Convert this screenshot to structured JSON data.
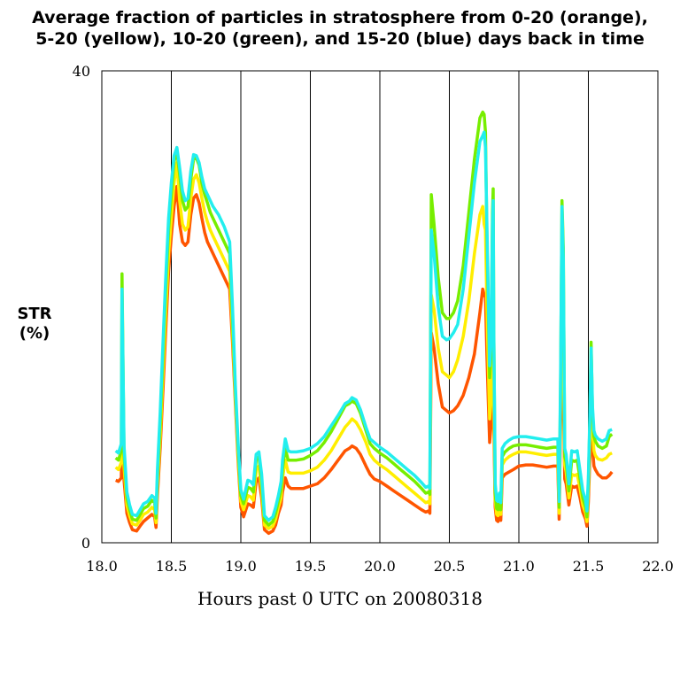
{
  "chart_data": {
    "type": "line",
    "title_line1": "Average fraction of particles in stratosphere from 0-20 (orange),",
    "title_line2": "5-20 (yellow), 10-20 (green), and 15-20 (blue) days back in time",
    "ylabel_line1": "STR",
    "ylabel_line2": "(%)",
    "xlabel": "Hours past 0 UTC on 20080318",
    "xlim": [
      18.0,
      22.0
    ],
    "ylim": [
      0,
      40
    ],
    "xticks": [
      "18.0",
      "18.5",
      "19.0",
      "19.5",
      "20.0",
      "20.5",
      "21.0",
      "21.5",
      "22.0"
    ],
    "xtick_values": [
      18.0,
      18.5,
      19.0,
      19.5,
      20.0,
      20.5,
      21.0,
      21.5,
      22.0
    ],
    "yticks": [
      "0",
      "40"
    ],
    "ytick_values": [
      0,
      40
    ],
    "vertical_grid_lines": [
      18.5,
      19.0,
      19.5,
      20.0,
      20.5,
      21.0,
      21.5
    ],
    "x": [
      18.1,
      18.12,
      18.14,
      18.145,
      18.16,
      18.18,
      18.2,
      18.22,
      18.25,
      18.28,
      18.3,
      18.33,
      18.36,
      18.38,
      18.39,
      18.4,
      18.42,
      18.44,
      18.46,
      18.48,
      18.5,
      18.52,
      18.54,
      18.56,
      18.58,
      18.6,
      18.62,
      18.64,
      18.66,
      18.68,
      18.7,
      18.72,
      18.74,
      18.76,
      18.78,
      18.8,
      18.84,
      18.88,
      18.92,
      18.94,
      18.96,
      18.98,
      19.0,
      19.02,
      19.05,
      19.07,
      19.09,
      19.11,
      19.13,
      19.15,
      19.17,
      19.2,
      19.23,
      19.25,
      19.27,
      19.29,
      19.3,
      19.32,
      19.34,
      19.36,
      19.4,
      19.45,
      19.5,
      19.55,
      19.6,
      19.65,
      19.7,
      19.75,
      19.78,
      19.8,
      19.83,
      19.86,
      19.9,
      19.93,
      19.96,
      20.0,
      20.05,
      20.1,
      20.15,
      20.2,
      20.25,
      20.3,
      20.33,
      20.35,
      20.36,
      20.37,
      20.39,
      20.42,
      20.45,
      20.48,
      20.5,
      20.53,
      20.56,
      20.6,
      20.64,
      20.68,
      20.72,
      20.74,
      20.75,
      20.76,
      20.77,
      20.78,
      20.79,
      20.8,
      20.81,
      20.815,
      20.82,
      20.83,
      20.84,
      20.85,
      20.86,
      20.87,
      20.88,
      20.9,
      20.93,
      20.96,
      21.0,
      21.05,
      21.1,
      21.15,
      21.2,
      21.25,
      21.28,
      21.29,
      21.3,
      21.31,
      21.32,
      21.33,
      21.34,
      21.36,
      21.38,
      21.4,
      21.42,
      21.44,
      21.46,
      21.48,
      21.49,
      21.5,
      21.51,
      21.52,
      21.53,
      21.54,
      21.55,
      21.57,
      21.6,
      21.63,
      21.65,
      21.67
    ],
    "series": [
      {
        "color": "#ff5500",
        "values": [
          5.3,
          5.2,
          5.5,
          9.5,
          5.3,
          2.5,
          1.7,
          1.1,
          1.0,
          1.5,
          1.8,
          2.1,
          2.4,
          2.2,
          1.3,
          4.0,
          8.0,
          13.0,
          18.0,
          23.0,
          26.0,
          28.5,
          30.2,
          27.0,
          25.5,
          25.2,
          25.5,
          27.8,
          29.2,
          29.5,
          28.8,
          27.5,
          26.3,
          25.5,
          25.0,
          24.5,
          23.5,
          22.5,
          21.5,
          17.0,
          12.0,
          7.0,
          3.0,
          2.2,
          3.3,
          3.2,
          3.0,
          5.2,
          5.5,
          3.8,
          1.1,
          0.8,
          1.0,
          1.5,
          2.5,
          3.2,
          4.3,
          5.5,
          4.8,
          4.6,
          4.6,
          4.6,
          4.8,
          5.0,
          5.5,
          6.2,
          7.0,
          7.8,
          8.0,
          8.2,
          8.0,
          7.5,
          6.5,
          5.8,
          5.4,
          5.2,
          4.8,
          4.4,
          4.0,
          3.6,
          3.2,
          2.8,
          2.6,
          2.7,
          2.5,
          17.8,
          16.5,
          13.5,
          11.5,
          11.2,
          11.0,
          11.2,
          11.6,
          12.5,
          14.0,
          16.0,
          19.5,
          21.5,
          21.0,
          20.8,
          16.0,
          12.0,
          8.5,
          10.0,
          14.5,
          16.0,
          10.0,
          3.0,
          1.9,
          1.8,
          2.4,
          1.9,
          5.5,
          5.8,
          6.0,
          6.2,
          6.5,
          6.6,
          6.6,
          6.5,
          6.4,
          6.5,
          6.5,
          2.0,
          10.0,
          15.5,
          13.0,
          5.4,
          5.0,
          3.2,
          4.8,
          4.7,
          4.8,
          3.8,
          2.6,
          2.0,
          1.4,
          3.5,
          7.0,
          9.0,
          8.0,
          6.5,
          6.2,
          5.8,
          5.5,
          5.5,
          5.7,
          6.0
        ]
      },
      {
        "color": "#ffee00",
        "values": [
          6.4,
          6.2,
          6.8,
          11.5,
          6.5,
          3.2,
          2.3,
          1.6,
          1.5,
          2.0,
          2.4,
          2.6,
          3.0,
          2.8,
          1.7,
          4.8,
          9.0,
          14.5,
          19.5,
          24.5,
          27.5,
          30.5,
          32.2,
          29.0,
          27.0,
          26.5,
          26.8,
          29.2,
          30.8,
          31.2,
          30.5,
          29.2,
          28.0,
          27.2,
          26.5,
          26.0,
          25.0,
          24.0,
          23.0,
          18.0,
          12.5,
          7.5,
          3.5,
          2.8,
          4.0,
          3.9,
          3.6,
          6.2,
          6.5,
          4.5,
          1.5,
          1.2,
          1.4,
          2.0,
          3.0,
          3.8,
          5.5,
          7.0,
          6.0,
          5.9,
          5.9,
          5.9,
          6.1,
          6.4,
          7.0,
          7.8,
          8.8,
          9.8,
          10.2,
          10.5,
          10.2,
          9.6,
          8.5,
          7.5,
          7.0,
          6.6,
          6.2,
          5.7,
          5.2,
          4.7,
          4.2,
          3.7,
          3.4,
          3.5,
          3.3,
          21.0,
          19.8,
          16.5,
          14.5,
          14.2,
          14.0,
          14.5,
          15.5,
          17.5,
          20.5,
          24.5,
          27.8,
          28.5,
          27.0,
          26.5,
          20.0,
          15.0,
          10.5,
          12.0,
          18.0,
          19.5,
          12.0,
          3.6,
          2.4,
          2.3,
          3.0,
          2.4,
          6.6,
          7.0,
          7.3,
          7.5,
          7.7,
          7.7,
          7.6,
          7.5,
          7.4,
          7.5,
          7.5,
          2.5,
          12.0,
          19.0,
          16.0,
          6.6,
          6.0,
          3.8,
          5.8,
          5.7,
          5.8,
          4.6,
          3.2,
          2.5,
          1.8,
          4.5,
          8.5,
          11.0,
          9.5,
          7.8,
          7.4,
          7.1,
          7.0,
          7.2,
          7.5,
          7.6
        ]
      },
      {
        "color": "#77ee00",
        "values": [
          7.2,
          7.0,
          7.8,
          22.8,
          7.5,
          3.8,
          2.8,
          2.0,
          1.9,
          2.5,
          2.9,
          3.1,
          3.6,
          3.4,
          2.1,
          5.5,
          10.0,
          16.0,
          21.5,
          26.5,
          29.5,
          32.3,
          33.2,
          31.2,
          29.0,
          28.2,
          28.5,
          30.8,
          32.5,
          32.6,
          32.0,
          30.5,
          29.5,
          28.8,
          28.0,
          27.5,
          26.5,
          25.5,
          24.5,
          19.0,
          13.0,
          8.0,
          4.0,
          3.3,
          4.7,
          4.6,
          4.3,
          7.0,
          7.3,
          5.2,
          1.9,
          1.5,
          1.8,
          2.5,
          3.5,
          4.5,
          6.3,
          8.0,
          7.0,
          7.0,
          7.0,
          7.1,
          7.4,
          7.8,
          8.5,
          9.4,
          10.5,
          11.6,
          11.8,
          12.0,
          11.8,
          11.0,
          9.5,
          8.4,
          8.0,
          7.6,
          7.2,
          6.7,
          6.2,
          5.7,
          5.2,
          4.6,
          4.2,
          4.3,
          4.1,
          29.5,
          27.0,
          22.5,
          19.5,
          19.0,
          19.0,
          19.5,
          20.5,
          23.5,
          28.0,
          32.5,
          36.0,
          36.5,
          36.3,
          34.8,
          26.0,
          19.5,
          14.0,
          16.0,
          28.0,
          30.0,
          18.0,
          4.2,
          2.9,
          2.8,
          3.6,
          2.8,
          7.3,
          7.7,
          8.0,
          8.2,
          8.3,
          8.3,
          8.2,
          8.1,
          8.0,
          8.1,
          8.1,
          3.0,
          13.0,
          29.0,
          25.0,
          7.3,
          6.8,
          4.4,
          7.0,
          6.9,
          7.0,
          5.4,
          3.8,
          3.0,
          2.2,
          5.0,
          10.0,
          17.0,
          11.0,
          9.0,
          8.6,
          8.2,
          8.0,
          8.2,
          9.0,
          9.2
        ]
      },
      {
        "color": "#22eeee",
        "values": [
          7.8,
          7.6,
          8.4,
          21.5,
          8.2,
          4.3,
          3.2,
          2.4,
          2.3,
          2.9,
          3.3,
          3.5,
          4.0,
          3.8,
          2.5,
          6.2,
          11.0,
          17.0,
          22.5,
          27.5,
          30.5,
          32.8,
          33.5,
          31.8,
          29.8,
          29.0,
          29.2,
          31.5,
          32.9,
          32.8,
          32.2,
          31.0,
          30.0,
          29.5,
          29.0,
          28.5,
          27.8,
          26.8,
          25.5,
          20.0,
          13.5,
          8.5,
          4.5,
          3.7,
          5.3,
          5.2,
          4.9,
          7.5,
          7.7,
          5.8,
          2.3,
          1.9,
          2.2,
          3.0,
          4.0,
          5.2,
          7.0,
          8.8,
          7.8,
          7.7,
          7.7,
          7.8,
          8.0,
          8.4,
          9.0,
          9.9,
          10.8,
          11.8,
          12.0,
          12.3,
          12.1,
          11.3,
          9.8,
          8.8,
          8.5,
          8.1,
          7.7,
          7.2,
          6.7,
          6.2,
          5.7,
          5.1,
          4.7,
          4.8,
          4.6,
          26.5,
          24.5,
          20.0,
          17.5,
          17.2,
          17.3,
          17.8,
          18.5,
          21.5,
          26.0,
          30.5,
          34.0,
          34.5,
          34.8,
          33.5,
          27.0,
          21.0,
          15.0,
          17.0,
          27.0,
          29.0,
          17.5,
          5.0,
          3.6,
          3.5,
          4.2,
          3.4,
          8.0,
          8.4,
          8.7,
          8.9,
          9.0,
          9.0,
          8.9,
          8.8,
          8.7,
          8.8,
          8.8,
          3.5,
          14.0,
          28.5,
          24.0,
          8.0,
          7.5,
          5.0,
          7.8,
          7.7,
          7.8,
          6.1,
          4.4,
          3.6,
          2.7,
          5.5,
          10.5,
          16.5,
          11.5,
          9.5,
          9.1,
          8.8,
          8.6,
          8.8,
          9.5,
          9.6
        ]
      }
    ]
  }
}
